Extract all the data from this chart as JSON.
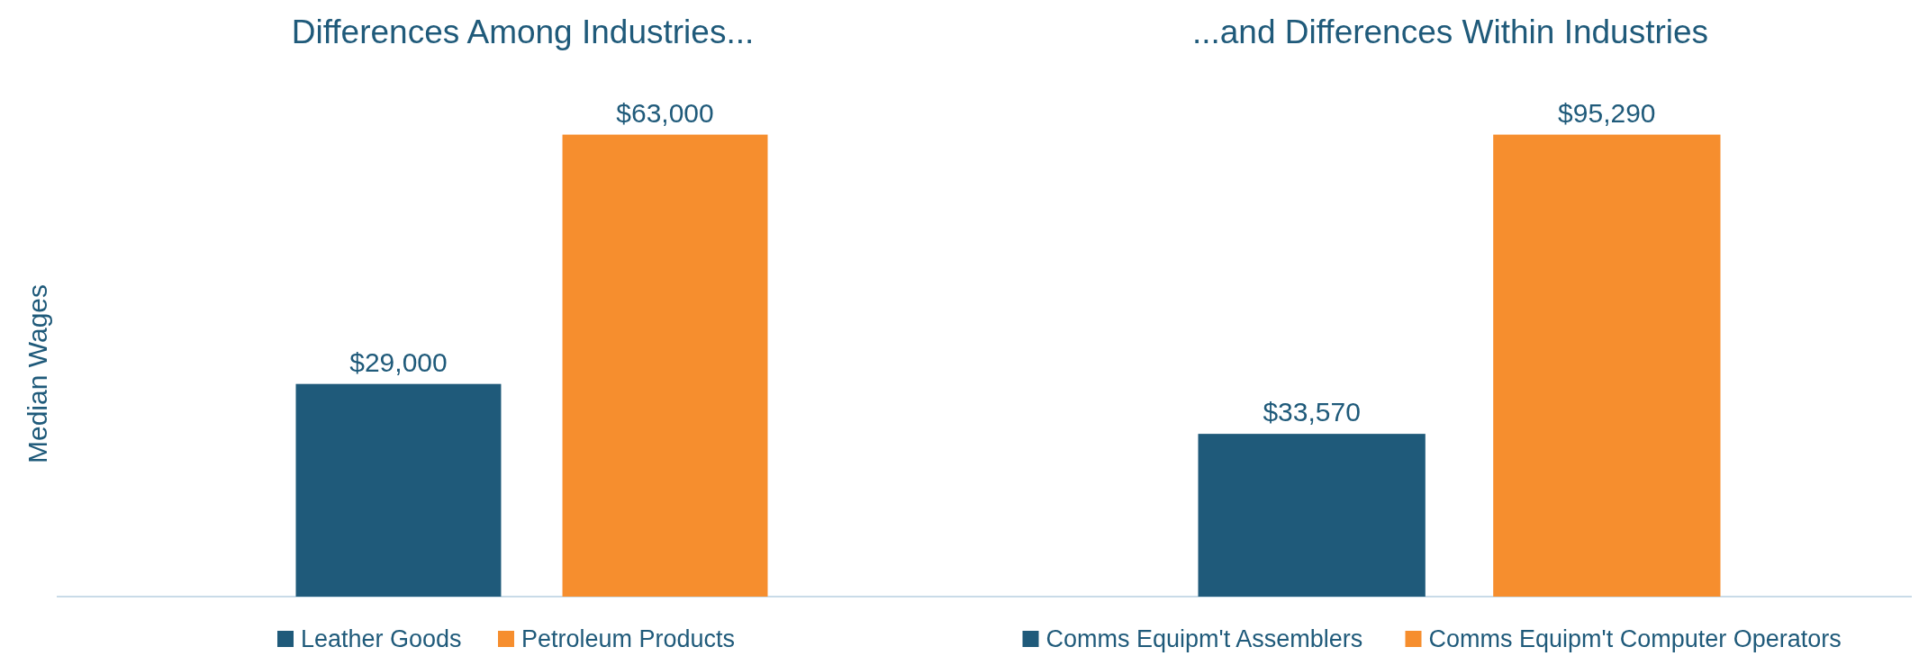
{
  "chart_data": [
    {
      "type": "bar",
      "title": "Differences Among Industries...",
      "ylabel": "Median Wages",
      "categories": [
        null
      ],
      "legend": "bottom",
      "series": [
        {
          "name": "Leather Goods",
          "color": "#1f5a7a",
          "values": [
            29000
          ],
          "value_labels": [
            "$29,000"
          ]
        },
        {
          "name": "Petroleum Products",
          "color": "#f68e2e",
          "values": [
            63000
          ],
          "value_labels": [
            "$63,000"
          ]
        }
      ]
    },
    {
      "type": "bar",
      "title": "...and Differences Within Industries",
      "categories": [
        null
      ],
      "legend": "bottom",
      "series": [
        {
          "name": "Comms Equipm't Assemblers",
          "color": "#1f5a7a",
          "values": [
            33570
          ],
          "value_labels": [
            "$33,570"
          ]
        },
        {
          "name": "Comms Equipm't Computer Operators",
          "color": "#f68e2e",
          "values": [
            95290
          ],
          "value_labels": [
            "$95,290"
          ]
        }
      ]
    }
  ]
}
